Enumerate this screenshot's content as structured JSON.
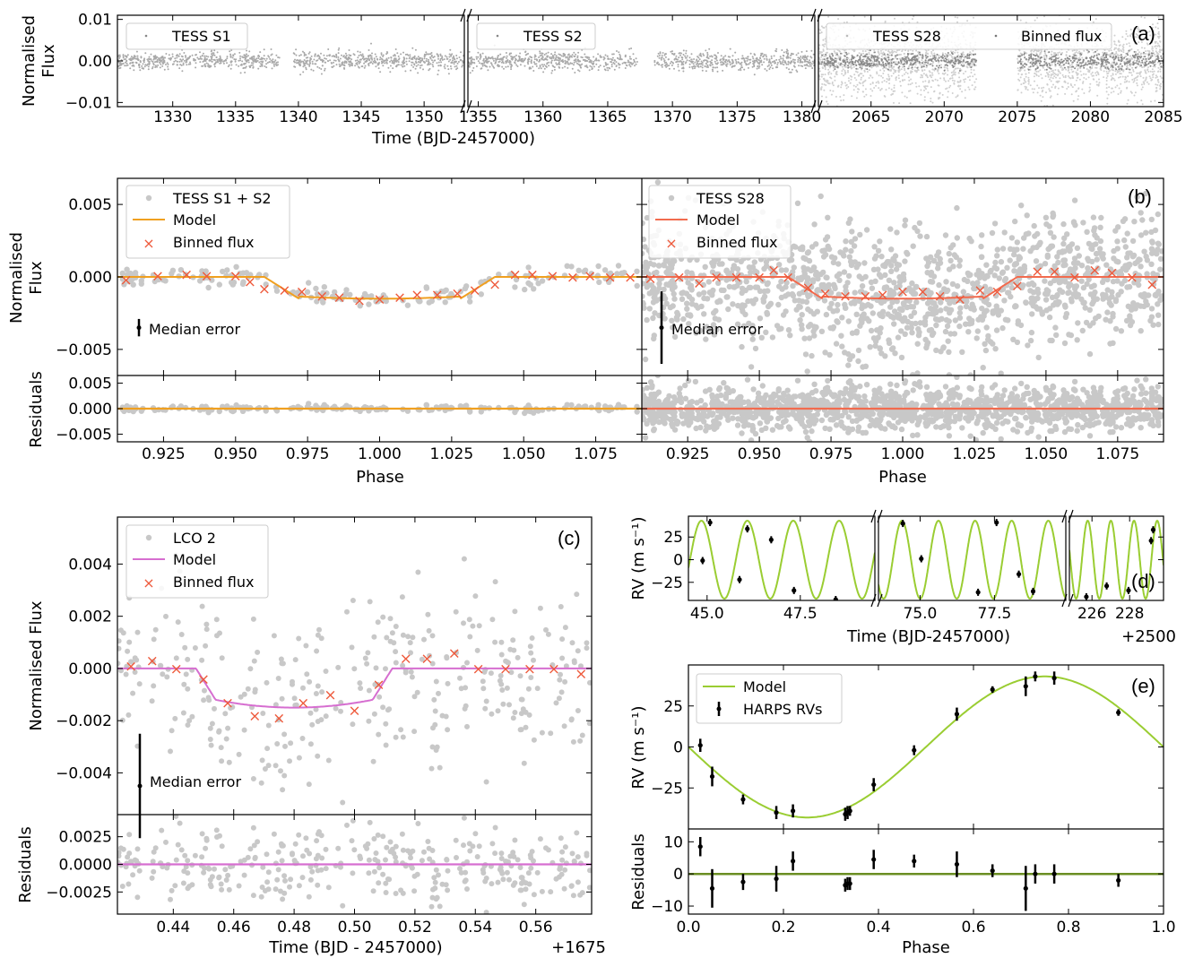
{
  "figure": {
    "xlabel_time": "Time (BJD-2457000)",
    "xlabel_phase": "Phase",
    "ylabel_flux": "Normalised Flux",
    "ylabel_flux_line1": "Normalised",
    "ylabel_flux_line2": "Flux",
    "ylabel_resid": "Residuals",
    "ylabel_rv": "RV (m s⁻¹)",
    "xlabel_time_lco": "Time (BJD - 2457000)",
    "offset_lco": "+1675",
    "offset_rv": "+2500",
    "median_error": "Median error"
  },
  "colors": {
    "gray_points": "#c8c8c8",
    "binned_gray": "#8a8a8a",
    "model_s12": "#f0a020",
    "model_s28": "#f26b4e",
    "binned_cross": "#ee5a3c",
    "model_lco": "#d66ed0",
    "model_rv": "#9acd32",
    "resid_rv": "#6b8e23"
  },
  "chart_data": [
    {
      "panel": "(a)",
      "type": "scatter",
      "ylabel": "Normalised Flux",
      "xlabel": "Time (BJD-2457000)",
      "ylim": [
        -0.011,
        0.011
      ],
      "yticks": [
        "0.01",
        "0.00",
        "−0.01"
      ],
      "segments": [
        {
          "xlim": [
            1325.6,
            1353.2
          ],
          "xticks": [
            1330,
            1335,
            1340,
            1345,
            1350
          ],
          "gaps": [
            [
              1338.5,
              1339.6
            ]
          ]
        },
        {
          "xlim": [
            1354.2,
            1381.0
          ],
          "xticks": [
            1355,
            1360,
            1365,
            1370,
            1375,
            1380
          ],
          "gaps": [
            [
              1367.3,
              1368.6
            ]
          ]
        },
        {
          "xlim": [
            2061.4,
            2085.0
          ],
          "xticks": [
            2065,
            2070,
            2075,
            2080,
            2085
          ],
          "gaps": [
            [
              2072.2,
              2075.0
            ]
          ]
        }
      ],
      "legend": [
        "TESS S1",
        "TESS S2",
        "TESS S28",
        "Binned flux"
      ]
    },
    {
      "panel": "(b)",
      "type": "scatter",
      "ylim": [
        -0.0068,
        0.0068
      ],
      "yticks": [
        "0.005",
        "0.000",
        "−0.005"
      ],
      "xlim": [
        0.909,
        1.091
      ],
      "xticks": [
        "0.925",
        "0.950",
        "0.975",
        "1.000",
        "1.025",
        "1.050",
        "1.075"
      ],
      "resid_ylim": [
        -0.0065,
        0.0065
      ],
      "resid_yticks": [
        "0.005",
        "0.000",
        "−0.005"
      ],
      "transit_depth": -0.0015,
      "ingress": [
        0.96,
        0.972
      ],
      "egress": [
        1.028,
        1.04
      ],
      "left_legend": [
        "TESS S1 + S2",
        "Model",
        "Binned flux"
      ],
      "right_legend": [
        "TESS S28",
        "Model",
        "Binned flux"
      ],
      "binned_s12": {
        "x": [
          0.912,
          0.923,
          0.933,
          0.94,
          0.95,
          0.955,
          0.96,
          0.967,
          0.973,
          0.98,
          0.986,
          0.993,
          1.0,
          1.007,
          1.013,
          1.02,
          1.027,
          1.033,
          1.04,
          1.047,
          1.053,
          1.06,
          1.067,
          1.073,
          1.08,
          1.087
        ],
        "y": [
          -0.0002,
          0.0001,
          0.0002,
          0.0001,
          0.0001,
          -0.0003,
          -0.0008,
          -0.0009,
          -0.001,
          -0.0013,
          -0.0014,
          -0.0016,
          -0.0015,
          -0.0014,
          -0.0012,
          -0.0012,
          -0.0011,
          -0.0009,
          -0.0005,
          0.0002,
          0.0002,
          0.0001,
          0.0,
          0.0001,
          0.0,
          0.0
        ]
      },
      "binned_s28": {
        "x": [
          0.912,
          0.922,
          0.929,
          0.935,
          0.942,
          0.95,
          0.955,
          0.96,
          0.967,
          0.973,
          0.98,
          0.987,
          0.993,
          1.0,
          1.007,
          1.013,
          1.02,
          1.027,
          1.033,
          1.04,
          1.047,
          1.053,
          1.06,
          1.067,
          1.073,
          1.08,
          1.087
        ],
        "y": [
          -0.0001,
          0.0,
          -0.0004,
          0.0,
          0.0,
          0.0,
          0.0005,
          0.0,
          -0.0007,
          -0.0011,
          -0.0013,
          -0.0013,
          -0.0012,
          -0.001,
          -0.001,
          -0.0013,
          -0.0015,
          -0.0009,
          -0.001,
          -0.0006,
          0.0004,
          0.0004,
          0.0,
          0.0005,
          0.0003,
          0.0,
          -0.0005
        ]
      },
      "median_error_s12": 0.0006,
      "median_error_s28": 0.0025
    },
    {
      "panel": "(c)",
      "type": "scatter",
      "ylabel": "Normalised Flux",
      "xlabel": "Time (BJD - 2457000)",
      "xlim": [
        0.4215,
        0.5785
      ],
      "xticks": [
        "0.44",
        "0.46",
        "0.48",
        "0.50",
        "0.52",
        "0.54",
        "0.56"
      ],
      "ylim": [
        -0.0056,
        0.0058
      ],
      "yticks": [
        "0.004",
        "0.002",
        "0.000",
        "−0.002",
        "−0.004"
      ],
      "resid_ylim": [
        -0.0045,
        0.0045
      ],
      "resid_yticks": [
        "0.0025",
        "0.0000",
        "−0.0025"
      ],
      "legend": [
        "LCO 2",
        "Model",
        "Binned flux"
      ],
      "binned": {
        "x": [
          0.426,
          0.433,
          0.441,
          0.45,
          0.458,
          0.467,
          0.475,
          0.483,
          0.492,
          0.5,
          0.508,
          0.517,
          0.524,
          0.533,
          0.541,
          0.55,
          0.558,
          0.566,
          0.575
        ],
        "y": [
          0.0001,
          0.0003,
          0.0,
          -0.0004,
          -0.0013,
          -0.0018,
          -0.0019,
          -0.0013,
          -0.001,
          -0.0016,
          -0.0006,
          0.0004,
          0.0004,
          0.0006,
          0.0,
          0.0,
          0.0,
          0.0,
          -0.0002
        ]
      },
      "median_error": 0.002
    },
    {
      "panel": "(d)",
      "type": "line",
      "ylabel": "RV (m s⁻¹)",
      "yticks": [
        "25",
        "0",
        "−25"
      ],
      "ylim": [
        -45,
        48
      ],
      "segments": [
        {
          "xlim": [
            44.5,
            49.5
          ],
          "xticks": [
            "45.0",
            "47.5"
          ]
        },
        {
          "xlim": [
            73.6,
            79.9
          ],
          "xticks": [
            "75.0",
            "77.5"
          ]
        },
        {
          "xlim": [
            224.8,
            229.8
          ],
          "xticks": [
            "226",
            "228"
          ]
        }
      ],
      "points": {
        "x": [
          44.88,
          45.08,
          45.87,
          46.08,
          46.72,
          47.33,
          48.45,
          74.42,
          75.04,
          76.95,
          77.57,
          78.32,
          78.8,
          225.7,
          226.78,
          227.94,
          229.14,
          229.25
        ],
        "y": [
          -1,
          41,
          -22,
          34,
          22,
          -34,
          -44,
          40,
          1,
          -36,
          41,
          -16,
          -35,
          -41,
          -29,
          -34,
          21,
          33
        ]
      }
    },
    {
      "panel": "(e)",
      "type": "scatter",
      "ylabel": "RV (m s⁻¹)",
      "xlabel": "Phase",
      "xlim": [
        0.0,
        1.0
      ],
      "xticks": [
        "0.0",
        "0.2",
        "0.4",
        "0.6",
        "0.8",
        "1.0"
      ],
      "ylim": [
        -50,
        50
      ],
      "yticks": [
        "25",
        "0",
        "−25"
      ],
      "resid_ylim": [
        -12.5,
        14
      ],
      "resid_yticks": [
        "10",
        "0",
        "−10"
      ],
      "legend": [
        "Model",
        "HARPS RVs"
      ],
      "points": {
        "phase": [
          0.025,
          0.05,
          0.115,
          0.185,
          0.22,
          0.33,
          0.335,
          0.34,
          0.39,
          0.475,
          0.565,
          0.64,
          0.71,
          0.73,
          0.77,
          0.905
        ],
        "rv": [
          1,
          -18,
          -32,
          -40,
          -39,
          -41,
          -40,
          -39,
          -23,
          -2,
          20,
          35,
          37,
          43,
          42,
          21
        ],
        "err": [
          4,
          6,
          3,
          4,
          4,
          4,
          4,
          3,
          4,
          3,
          4,
          2,
          6,
          3,
          4,
          2
        ],
        "resid": [
          8.5,
          -4.5,
          -2.5,
          -1.5,
          4,
          -3.5,
          -3,
          -3,
          4.5,
          4,
          3,
          1,
          -4.5,
          0,
          0,
          -2
        ],
        "resid_err": [
          3,
          6,
          2.5,
          4,
          3,
          2,
          2,
          2,
          3,
          2,
          4,
          2,
          7,
          3,
          3,
          2
        ]
      },
      "model_semi_amplitude": 43
    }
  ]
}
